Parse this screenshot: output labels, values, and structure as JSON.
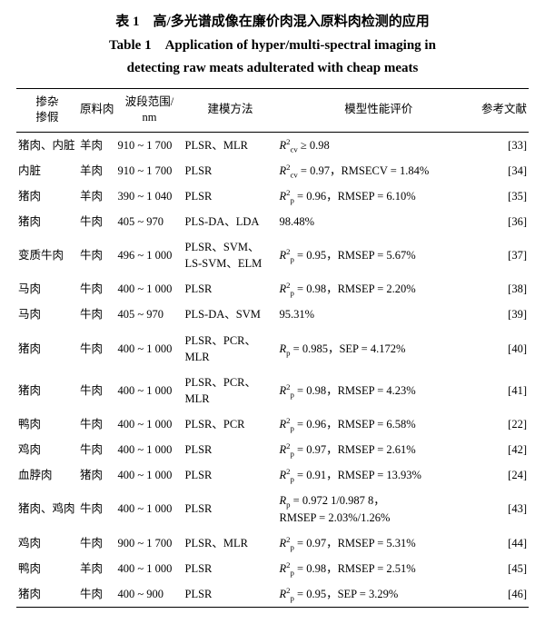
{
  "title_cn": "表 1　高/多光谱成像在廉价肉混入原料肉检测的应用",
  "title_en_l1": "Table 1　Application of hyper/multi-spectral imaging in",
  "title_en_l2": "detecting raw meats adulterated with cheap meats",
  "columns": {
    "c0a": "掺杂",
    "c0b": "掺假",
    "c1": "原料肉",
    "c2a": "波段范围/",
    "c2b": "nm",
    "c3": "建模方法",
    "c4": "模型性能评价",
    "c5": "参考文献"
  },
  "rows": [
    {
      "adulterant": "猪肉、内脏",
      "raw": "羊肉",
      "band": "910 ~ 1 700",
      "method": "PLSR、MLR",
      "perf": "<span class='italic'>R</span><sup>2</sup><sub>cv</sub> ≥ 0.98",
      "ref": "[33]"
    },
    {
      "adulterant": "内脏",
      "raw": "羊肉",
      "band": "910 ~ 1 700",
      "method": "PLSR",
      "perf": "<span class='italic'>R</span><sup>2</sup><sub>cv</sub> = 0.97，RMSECV = 1.84%",
      "ref": "[34]"
    },
    {
      "adulterant": "猪肉",
      "raw": "羊肉",
      "band": "390 ~ 1 040",
      "method": "PLSR",
      "perf": "<span class='italic'>R</span><sup>2</sup><sub>p</sub> = 0.96，RMSEP = 6.10%",
      "ref": "[35]"
    },
    {
      "adulterant": "猪肉",
      "raw": "牛肉",
      "band": "405 ~ 970",
      "method": "PLS-DA、LDA",
      "perf": "98.48%",
      "ref": "[36]"
    },
    {
      "adulterant": "变质牛肉",
      "raw": "牛肉",
      "band": "496 ~ 1 000",
      "method": "PLSR、SVM、<br>LS-SVM、ELM",
      "perf": "<span class='italic'>R</span><sup>2</sup><sub>p</sub> = 0.95，RMSEP = 5.67%",
      "ref": "[37]"
    },
    {
      "adulterant": "马肉",
      "raw": "牛肉",
      "band": "400 ~ 1 000",
      "method": "PLSR",
      "perf": "<span class='italic'>R</span><sup>2</sup><sub>p</sub> = 0.98，RMSEP = 2.20%",
      "ref": "[38]"
    },
    {
      "adulterant": "马肉",
      "raw": "牛肉",
      "band": "405 ~ 970",
      "method": "PLS-DA、SVM",
      "perf": "95.31%",
      "ref": "[39]"
    },
    {
      "adulterant": "猪肉",
      "raw": "牛肉",
      "band": "400 ~ 1 000",
      "method": "PLSR、PCR、MLR",
      "perf": "<span class='italic'>R</span><sub>p</sub> = 0.985，SEP = 4.172%",
      "ref": "[40]"
    },
    {
      "adulterant": "猪肉",
      "raw": "牛肉",
      "band": "400 ~ 1 000",
      "method": "PLSR、PCR、MLR",
      "perf": "<span class='italic'>R</span><sup>2</sup><sub>p</sub> = 0.98，RMSEP = 4.23%",
      "ref": "[41]"
    },
    {
      "adulterant": "鸭肉",
      "raw": "牛肉",
      "band": "400 ~ 1 000",
      "method": "PLSR、PCR",
      "perf": "<span class='italic'>R</span><sup>2</sup><sub>p</sub> = 0.96，RMSEP = 6.58%",
      "ref": "[22]"
    },
    {
      "adulterant": "鸡肉",
      "raw": "牛肉",
      "band": "400 ~ 1 000",
      "method": "PLSR",
      "perf": "<span class='italic'>R</span><sup>2</sup><sub>p</sub> = 0.97，RMSEP = 2.61%",
      "ref": "[42]"
    },
    {
      "adulterant": "血脖肉",
      "raw": "猪肉",
      "band": "400 ~ 1 000",
      "method": "PLSR",
      "perf": "<span class='italic'>R</span><sup>2</sup><sub>p</sub> = 0.91，RMSEP = 13.93%",
      "ref": "[24]"
    },
    {
      "adulterant": "猪肉、鸡肉",
      "raw": "牛肉",
      "band": "400 ~ 1 000",
      "method": "PLSR",
      "perf": "<span class='italic'>R</span><sub>p</sub> = 0.972 1/0.987 8，<br>RMSEP = 2.03%/1.26%",
      "ref": "[43]"
    },
    {
      "adulterant": "鸡肉",
      "raw": "牛肉",
      "band": "900 ~ 1 700",
      "method": "PLSR、MLR",
      "perf": "<span class='italic'>R</span><sup>2</sup><sub>p</sub> = 0.97，RMSEP = 5.31%",
      "ref": "[44]"
    },
    {
      "adulterant": "鸭肉",
      "raw": "羊肉",
      "band": "400 ~ 1 000",
      "method": "PLSR",
      "perf": "<span class='italic'>R</span><sup>2</sup><sub>p</sub> = 0.98，RMSEP = 2.51%",
      "ref": "[45]"
    },
    {
      "adulterant": "猪肉",
      "raw": "牛肉",
      "band": "400 ~ 900",
      "method": "PLSR",
      "perf": "<span class='italic'>R</span><sup>2</sup><sub>p</sub> = 0.95，SEP = 3.29%",
      "ref": "[46]"
    }
  ]
}
